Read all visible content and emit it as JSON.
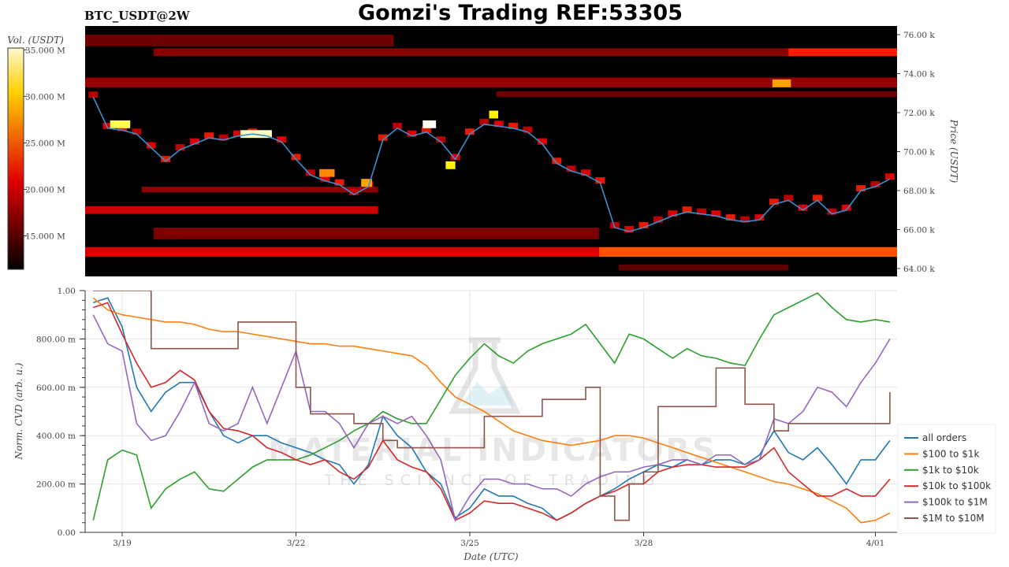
{
  "header": {
    "title": "Gomzi's Trading REF:53305",
    "subtitle": "BTC_USDT@2W"
  },
  "watermark": {
    "line1": "MATERIAL INDICATORS",
    "line2": "THE SCIENCE OF TRADING"
  },
  "colors": {
    "all": "#1f77b4",
    "r100": "#ff7f0e",
    "r1k": "#2ca02c",
    "r10k": "#d62728",
    "r100k": "#9467bd",
    "r1M": "#8c564b"
  },
  "chart_data": [
    {
      "type": "heatmap",
      "title": "BTC_USDT@2W",
      "ylabel": "Price (USDT)",
      "colorbar_label": "Vol. (USDT)",
      "colorbar_range": [
        11.4,
        35.2
      ],
      "colorbar_ticks": [
        "15.000 M",
        "20.000 M",
        "25.000 M",
        "30.000 M",
        "35.000 M"
      ],
      "colorbar_tick_values": [
        15,
        20,
        25,
        30,
        35
      ],
      "colormap": "hot",
      "ylim": [
        63.6,
        76.4
      ],
      "yticks": [
        "64.00 k",
        "66.00 k",
        "68.00 k",
        "70.00 k",
        "72.00 k",
        "74.00 k",
        "76.00 k"
      ],
      "ytick_values": [
        64,
        66,
        68,
        70,
        72,
        74,
        76
      ],
      "xlim": [
        "03-18 08:40",
        "04-01 09:00"
      ],
      "bands": [
        {
          "t0": "03-18 08:40",
          "t1": "03-23 16:30",
          "p0": 75.4,
          "p1": 76.0,
          "v": 15.5
        },
        {
          "t0": "03-19 13:00",
          "t1": "03-30 12:00",
          "p0": 74.9,
          "p1": 75.3,
          "v": 16.5
        },
        {
          "t0": "03-30 12:00",
          "t1": "04-01 09:00",
          "p0": 74.9,
          "p1": 75.3,
          "v": 22
        },
        {
          "t0": "03-18 08:40",
          "t1": "04-01 09:00",
          "p0": 73.3,
          "p1": 73.8,
          "v": 17
        },
        {
          "t0": "03-25 11:00",
          "t1": "04-01 09:00",
          "p0": 72.8,
          "p1": 73.1,
          "v": 15.5
        },
        {
          "t0": "03-19 08:00",
          "t1": "03-23 10:00",
          "p0": 67.9,
          "p1": 68.2,
          "v": 16.5
        },
        {
          "t0": "03-18 08:40",
          "t1": "03-23 10:00",
          "p0": 66.8,
          "p1": 67.2,
          "v": 19
        },
        {
          "t0": "03-19 13:00",
          "t1": "03-27 05:30",
          "p0": 65.5,
          "p1": 66.1,
          "v": 16
        },
        {
          "t0": "03-18 08:40",
          "t1": "03-27 05:30",
          "p0": 64.6,
          "p1": 65.1,
          "v": 19.5
        },
        {
          "t0": "03-27 05:30",
          "t1": "04-01 09:00",
          "p0": 64.6,
          "p1": 65.1,
          "v": 24
        },
        {
          "t0": "03-27 13:40",
          "t1": "03-30 12:00",
          "p0": 63.9,
          "p1": 64.2,
          "v": 15
        }
      ],
      "hotspots": [
        {
          "t0": "03-18 19:00",
          "t1": "03-19 03:20",
          "p0": 71.2,
          "p1": 71.6,
          "v": 32
        },
        {
          "t0": "03-21 01:00",
          "t1": "03-21 14:00",
          "p0": 70.7,
          "p1": 71.1,
          "v": 34
        },
        {
          "t0": "03-22 09:40",
          "t1": "03-22 16:00",
          "p0": 68.7,
          "p1": 69.1,
          "v": 26
        },
        {
          "t0": "03-23 03:00",
          "t1": "03-23 07:30",
          "p0": 68.2,
          "p1": 68.6,
          "v": 27
        },
        {
          "t0": "03-24 04:30",
          "t1": "03-24 10:00",
          "p0": 71.2,
          "p1": 71.6,
          "v": 35
        },
        {
          "t0": "03-24 14:00",
          "t1": "03-24 18:00",
          "p0": 69.1,
          "p1": 69.5,
          "v": 30
        },
        {
          "t0": "03-25 08:00",
          "t1": "03-25 11:45",
          "p0": 71.7,
          "p1": 72.1,
          "v": 30
        },
        {
          "t0": "03-30 05:20",
          "t1": "03-30 13:00",
          "p0": 73.3,
          "p1": 73.7,
          "v": 27
        }
      ],
      "price_series": {
        "t": [
          "03-18 12:00",
          "03-18 18:00",
          "03-19 00:00",
          "03-19 06:00",
          "03-19 12:00",
          "03-19 18:00",
          "03-20 00:00",
          "03-20 06:00",
          "03-20 12:00",
          "03-20 18:00",
          "03-21 00:00",
          "03-21 06:00",
          "03-21 12:00",
          "03-21 18:00",
          "03-22 00:00",
          "03-22 06:00",
          "03-22 12:00",
          "03-22 18:00",
          "03-23 00:00",
          "03-23 06:00",
          "03-23 12:00",
          "03-23 18:00",
          "03-24 00:00",
          "03-24 06:00",
          "03-24 12:00",
          "03-24 18:00",
          "03-25 00:00",
          "03-25 06:00",
          "03-25 12:00",
          "03-25 18:00",
          "03-26 00:00",
          "03-26 06:00",
          "03-26 12:00",
          "03-26 18:00",
          "03-27 00:00",
          "03-27 06:00",
          "03-27 12:00",
          "03-27 18:00",
          "03-28 00:00",
          "03-28 06:00",
          "03-28 12:00",
          "03-28 18:00",
          "03-29 00:00",
          "03-29 06:00",
          "03-29 12:00",
          "03-29 18:00",
          "03-30 00:00",
          "03-30 06:00",
          "03-30 12:00",
          "03-30 18:00",
          "03-31 00:00",
          "03-31 06:00",
          "03-31 12:00",
          "03-31 18:00",
          "04-01 00:00",
          "04-01 06:00"
        ],
        "values": [
          72.8,
          71.2,
          71.1,
          70.9,
          70.2,
          69.5,
          70.1,
          70.4,
          70.7,
          70.6,
          70.8,
          70.9,
          70.8,
          70.5,
          69.6,
          68.8,
          68.5,
          68.3,
          67.8,
          68.2,
          70.6,
          71.2,
          70.8,
          71.0,
          70.5,
          69.6,
          70.9,
          71.4,
          71.3,
          71.2,
          71.0,
          70.4,
          69.4,
          69.0,
          68.8,
          68.4,
          66.1,
          65.9,
          66.1,
          66.4,
          66.7,
          66.9,
          66.8,
          66.7,
          66.5,
          66.4,
          66.5,
          67.3,
          67.5,
          67.0,
          67.5,
          66.8,
          67.0,
          68.0,
          68.2,
          68.6
        ]
      }
    },
    {
      "type": "line",
      "xlabel": "Date (UTC)",
      "ylabel": "Norm. CVD (arb. u.)",
      "ylim": [
        0,
        1
      ],
      "yticks": [
        "0.00",
        "200.00 m",
        "400.00 m",
        "600.00 m",
        "800.00 m",
        "1.00"
      ],
      "ytick_values": [
        0,
        0.2,
        0.4,
        0.6,
        0.8,
        1.0
      ],
      "xticks": [
        "3/19",
        "3/22",
        "3/25",
        "3/28",
        "4/01"
      ],
      "xtick_values": [
        "03-19 00:00",
        "03-22 00:00",
        "03-25 00:00",
        "03-28 00:00",
        "04-01 00:00"
      ],
      "grid": true,
      "legend": "bottom-right",
      "series": [
        {
          "name": "all orders",
          "color": "#1f77b4",
          "values": [
            0.95,
            0.97,
            0.85,
            0.6,
            0.5,
            0.58,
            0.62,
            0.62,
            0.5,
            0.4,
            0.37,
            0.4,
            0.4,
            0.37,
            0.35,
            0.33,
            0.3,
            0.28,
            0.2,
            0.28,
            0.48,
            0.4,
            0.35,
            0.25,
            0.2,
            0.06,
            0.1,
            0.18,
            0.15,
            0.15,
            0.12,
            0.1,
            0.05,
            0.08,
            0.12,
            0.15,
            0.18,
            0.22,
            0.25,
            0.28,
            0.27,
            0.3,
            0.28,
            0.3,
            0.3,
            0.28,
            0.32,
            0.42,
            0.33,
            0.3,
            0.35,
            0.28,
            0.2,
            0.3,
            0.3,
            0.38
          ]
        },
        {
          "name": "$100 to $1k",
          "color": "#ff7f0e",
          "values": [
            0.97,
            0.92,
            0.9,
            0.89,
            0.88,
            0.87,
            0.87,
            0.86,
            0.84,
            0.83,
            0.83,
            0.82,
            0.81,
            0.8,
            0.79,
            0.78,
            0.78,
            0.77,
            0.77,
            0.76,
            0.75,
            0.74,
            0.73,
            0.69,
            0.62,
            0.56,
            0.53,
            0.5,
            0.46,
            0.42,
            0.4,
            0.38,
            0.37,
            0.36,
            0.37,
            0.38,
            0.4,
            0.4,
            0.39,
            0.37,
            0.35,
            0.33,
            0.31,
            0.29,
            0.27,
            0.25,
            0.23,
            0.21,
            0.2,
            0.18,
            0.16,
            0.13,
            0.1,
            0.04,
            0.05,
            0.08
          ]
        },
        {
          "name": "$1k to $10k",
          "color": "#2ca02c",
          "values": [
            0.05,
            0.3,
            0.34,
            0.32,
            0.1,
            0.18,
            0.22,
            0.25,
            0.18,
            0.17,
            0.22,
            0.27,
            0.3,
            0.3,
            0.3,
            0.32,
            0.35,
            0.38,
            0.42,
            0.45,
            0.5,
            0.47,
            0.45,
            0.45,
            0.55,
            0.65,
            0.72,
            0.78,
            0.73,
            0.7,
            0.75,
            0.78,
            0.8,
            0.82,
            0.86,
            0.78,
            0.7,
            0.82,
            0.8,
            0.76,
            0.72,
            0.76,
            0.73,
            0.72,
            0.7,
            0.69,
            0.8,
            0.9,
            0.93,
            0.96,
            0.99,
            0.93,
            0.88,
            0.87,
            0.88,
            0.87
          ]
        },
        {
          "name": "$10k to $100k",
          "color": "#d62728",
          "values": [
            0.93,
            0.95,
            0.82,
            0.7,
            0.6,
            0.62,
            0.67,
            0.63,
            0.5,
            0.43,
            0.42,
            0.4,
            0.35,
            0.33,
            0.3,
            0.28,
            0.3,
            0.25,
            0.22,
            0.27,
            0.38,
            0.3,
            0.27,
            0.25,
            0.18,
            0.05,
            0.08,
            0.13,
            0.12,
            0.12,
            0.1,
            0.08,
            0.05,
            0.08,
            0.12,
            0.15,
            0.17,
            0.2,
            0.2,
            0.25,
            0.27,
            0.28,
            0.28,
            0.27,
            0.27,
            0.27,
            0.3,
            0.35,
            0.25,
            0.2,
            0.15,
            0.15,
            0.18,
            0.15,
            0.15,
            0.22
          ]
        },
        {
          "name": "$100k to $1M",
          "color": "#9467bd",
          "values": [
            0.9,
            0.78,
            0.75,
            0.45,
            0.38,
            0.4,
            0.5,
            0.62,
            0.45,
            0.42,
            0.45,
            0.6,
            0.45,
            0.6,
            0.75,
            0.5,
            0.5,
            0.45,
            0.35,
            0.45,
            0.48,
            0.45,
            0.48,
            0.4,
            0.3,
            0.05,
            0.15,
            0.22,
            0.22,
            0.2,
            0.2,
            0.18,
            0.18,
            0.15,
            0.2,
            0.23,
            0.25,
            0.25,
            0.27,
            0.28,
            0.3,
            0.3,
            0.28,
            0.32,
            0.32,
            0.28,
            0.3,
            0.47,
            0.45,
            0.5,
            0.6,
            0.58,
            0.52,
            0.62,
            0.7,
            0.8
          ]
        },
        {
          "name": "$1M to $10M",
          "color": "#8c564b",
          "step": true,
          "values": [
            1.0,
            1.0,
            1.0,
            1.0,
            0.76,
            0.76,
            0.76,
            0.76,
            0.76,
            0.76,
            0.87,
            0.87,
            0.87,
            0.87,
            0.6,
            0.49,
            0.49,
            0.49,
            0.45,
            0.45,
            0.38,
            0.35,
            0.35,
            0.35,
            0.35,
            0.35,
            0.35,
            0.48,
            0.48,
            0.48,
            0.48,
            0.55,
            0.55,
            0.55,
            0.6,
            0.15,
            0.05,
            0.2,
            0.25,
            0.52,
            0.52,
            0.52,
            0.52,
            0.68,
            0.68,
            0.53,
            0.53,
            0.42,
            0.45,
            0.45,
            0.45,
            0.45,
            0.45,
            0.45,
            0.45,
            0.58
          ]
        }
      ]
    }
  ]
}
